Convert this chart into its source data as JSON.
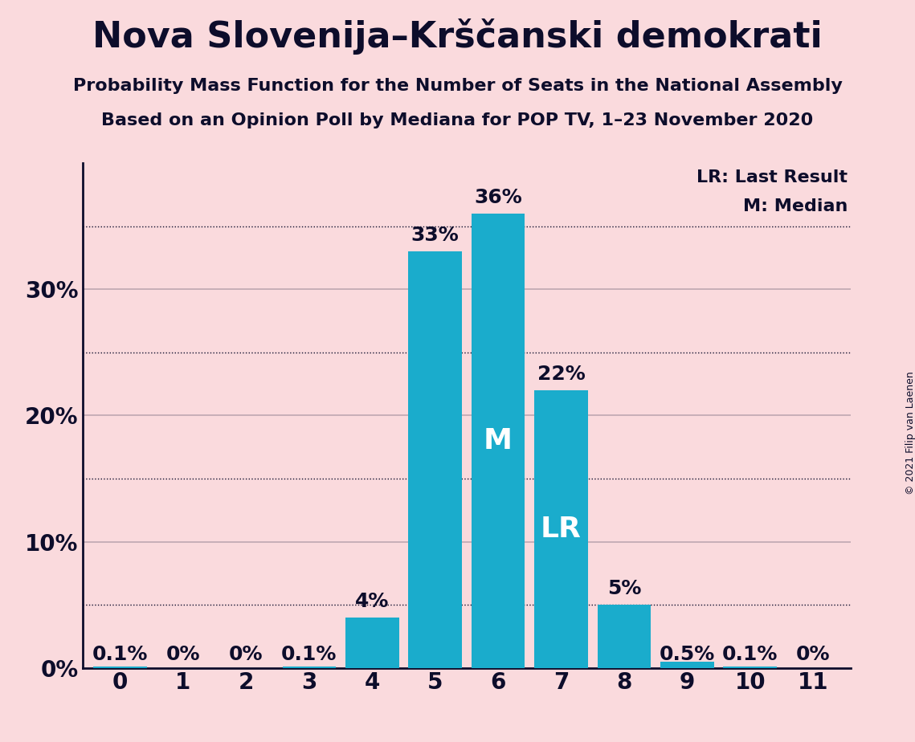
{
  "title": "Nova Slovenija–Krščanski demokrati",
  "subtitle1": "Probability Mass Function for the Number of Seats in the National Assembly",
  "subtitle2": "Based on an Opinion Poll by Mediana for POP TV, 1–23 November 2020",
  "copyright": "© 2021 Filip van Laenen",
  "categories": [
    0,
    1,
    2,
    3,
    4,
    5,
    6,
    7,
    8,
    9,
    10,
    11
  ],
  "values": [
    0.1,
    0.0,
    0.0,
    0.1,
    4.0,
    33.0,
    36.0,
    22.0,
    5.0,
    0.5,
    0.1,
    0.0
  ],
  "bar_color": "#1AACCC",
  "background_color": "#FADADD",
  "text_color": "#0D0D2B",
  "median_bar": 6,
  "lr_bar": 7,
  "ylabel_ticks": [
    0,
    10,
    20,
    30
  ],
  "solid_grid_values": [
    10,
    20,
    30
  ],
  "dotted_grid_values": [
    5,
    15,
    25,
    35
  ],
  "ylim": [
    0,
    40
  ],
  "bar_labels": [
    "0.1%",
    "0%",
    "0%",
    "0.1%",
    "4%",
    "33%",
    "36%",
    "22%",
    "5%",
    "0.5%",
    "0.1%",
    "0%"
  ],
  "small_label_threshold": 1.0,
  "legend_lr": "LR: Last Result",
  "legend_m": "M: Median",
  "title_fontsize": 32,
  "subtitle_fontsize": 16,
  "tick_fontsize": 20,
  "bar_label_fontsize": 18,
  "legend_fontsize": 16,
  "inner_label_fontsize": 26,
  "copyright_fontsize": 9
}
